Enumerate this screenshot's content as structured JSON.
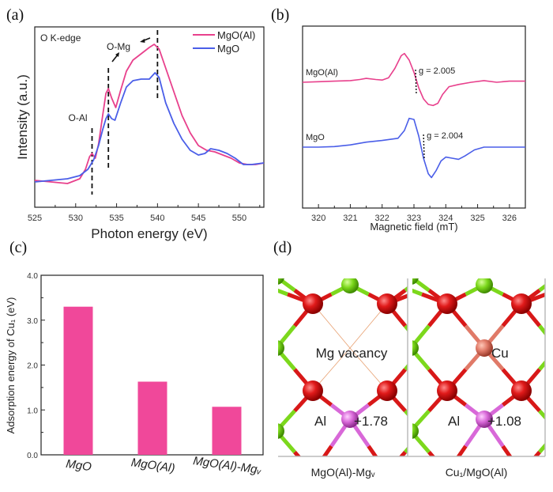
{
  "panels": {
    "a": "(a)",
    "b": "(b)",
    "c": "(c)",
    "d": "(d)"
  },
  "colors": {
    "mgo_al": "#e8408c",
    "mgo": "#4a5ee8",
    "bar": "#f0489a",
    "oxygen": "#d81818",
    "magnesium": "#7cd81c",
    "aluminum": "#d868d8",
    "copper": "#e07a68"
  },
  "chart_data": [
    {
      "id": "a",
      "type": "line",
      "title": "",
      "inset_label": "O K-edge",
      "xlabel": "Photon energy (eV)",
      "ylabel": "Intensity (a.u.)",
      "xlim": [
        525,
        553
      ],
      "ylim": [
        0,
        1
      ],
      "xticks": [
        525,
        530,
        535,
        540,
        545,
        550
      ],
      "grid": false,
      "legend": {
        "position": "top-right",
        "entries": [
          "MgO(Al)",
          "MgO"
        ]
      },
      "annotations": [
        {
          "text": "O-Al",
          "x": 532.0
        },
        {
          "text": "O-Mg",
          "x": 534.0
        },
        {
          "text": "",
          "x": 540.0
        }
      ],
      "series": [
        {
          "name": "MgO(Al)",
          "x": [
            525,
            527,
            529,
            530.5,
            531.2,
            531.7,
            532.0,
            532.4,
            532.8,
            533.3,
            533.7,
            534.0,
            534.4,
            534.9,
            535.5,
            536.2,
            537,
            538,
            539,
            539.6,
            540.2,
            541,
            542,
            543,
            544,
            545,
            546,
            547,
            548,
            549,
            550,
            551,
            552,
            553
          ],
          "y": [
            0.11,
            0.1,
            0.09,
            0.12,
            0.18,
            0.26,
            0.28,
            0.25,
            0.34,
            0.52,
            0.66,
            0.69,
            0.63,
            0.57,
            0.68,
            0.8,
            0.87,
            0.91,
            0.95,
            0.97,
            0.94,
            0.82,
            0.67,
            0.52,
            0.41,
            0.33,
            0.3,
            0.29,
            0.27,
            0.25,
            0.22,
            0.21,
            0.21,
            0.22
          ]
        },
        {
          "name": "MgO",
          "x": [
            525,
            527,
            529,
            530.5,
            531.5,
            532.2,
            532.8,
            533.3,
            533.7,
            534.0,
            534.4,
            534.8,
            535.5,
            536.2,
            537,
            538,
            539,
            539.7,
            540.2,
            541,
            542,
            543,
            544,
            545,
            545.8,
            546.5,
            547.5,
            548.5,
            549.5,
            550.5,
            551.5,
            553
          ],
          "y": [
            0.1,
            0.11,
            0.12,
            0.14,
            0.18,
            0.24,
            0.33,
            0.43,
            0.5,
            0.53,
            0.5,
            0.49,
            0.6,
            0.7,
            0.74,
            0.75,
            0.75,
            0.79,
            0.76,
            0.6,
            0.47,
            0.37,
            0.3,
            0.27,
            0.28,
            0.31,
            0.3,
            0.28,
            0.25,
            0.21,
            0.21,
            0.22
          ]
        }
      ]
    },
    {
      "id": "b",
      "type": "line",
      "title": "",
      "xlabel": "Magnetic field (mT)",
      "ylabel": "",
      "xlim": [
        319.5,
        326.5
      ],
      "xticks": [
        320,
        321,
        322,
        323,
        324,
        325,
        326
      ],
      "grid": false,
      "annotations": [
        {
          "text": "g = 2.005",
          "series": "MgO(Al)",
          "x": 323.05
        },
        {
          "text": "g = 2.004",
          "series": "MgO",
          "x": 323.3
        }
      ],
      "series": [
        {
          "name": "MgO(Al)",
          "label": "MgO(Al)",
          "x": [
            319.5,
            320,
            320.5,
            321,
            321.3,
            321.5,
            321.8,
            322.0,
            322.2,
            322.4,
            322.6,
            322.7,
            322.85,
            323.0,
            323.15,
            323.3,
            323.45,
            323.6,
            323.75,
            323.9,
            324.1,
            324.4,
            324.8,
            325.2,
            325.6,
            326.0,
            326.5
          ],
          "y": [
            0.0,
            0.01,
            0.02,
            0.03,
            0.05,
            0.07,
            0.05,
            0.04,
            0.08,
            0.25,
            0.48,
            0.52,
            0.4,
            0.18,
            -0.1,
            -0.3,
            -0.4,
            -0.42,
            -0.38,
            -0.22,
            -0.08,
            -0.04,
            0.0,
            0.03,
            0.0,
            0.02,
            0.02
          ]
        },
        {
          "name": "MgO",
          "label": "MgO",
          "x": [
            319.5,
            320,
            320.5,
            321,
            321.5,
            322,
            322.5,
            322.7,
            322.85,
            323.0,
            323.15,
            323.3,
            323.45,
            323.55,
            323.7,
            323.85,
            324.0,
            324.2,
            324.4,
            324.6,
            324.9,
            325.2,
            325.8,
            326.5
          ],
          "y": [
            0.0,
            0.0,
            0.01,
            0.04,
            0.09,
            0.12,
            0.16,
            0.3,
            0.52,
            0.5,
            0.2,
            -0.2,
            -0.48,
            -0.55,
            -0.42,
            -0.25,
            -0.18,
            -0.2,
            -0.22,
            -0.16,
            -0.05,
            0.0,
            0.0,
            0.0
          ]
        }
      ]
    },
    {
      "id": "c",
      "type": "bar",
      "title": "",
      "xlabel": "",
      "ylabel": "Adsorption energy of Cu₁ (eV)",
      "categories": [
        "MgO",
        "MgO(Al)",
        "MgO(Al)-Mgᵥ"
      ],
      "values": [
        3.3,
        1.63,
        1.07
      ],
      "ylim": [
        0.0,
        4.0
      ],
      "yticks": [
        "0.0",
        "1.0",
        "2.0",
        "3.0",
        "4.0"
      ],
      "grid": false
    }
  ],
  "structures": {
    "left": {
      "caption": "MgO(Al)-Mgᵥ",
      "center_label": "Mg vacancy",
      "dopant_label": "Al",
      "charge": "+1.78"
    },
    "right": {
      "caption": "Cu₁/MgO(Al)",
      "center_label": "Cu",
      "dopant_label": "Al",
      "charge": "+1.08"
    }
  }
}
